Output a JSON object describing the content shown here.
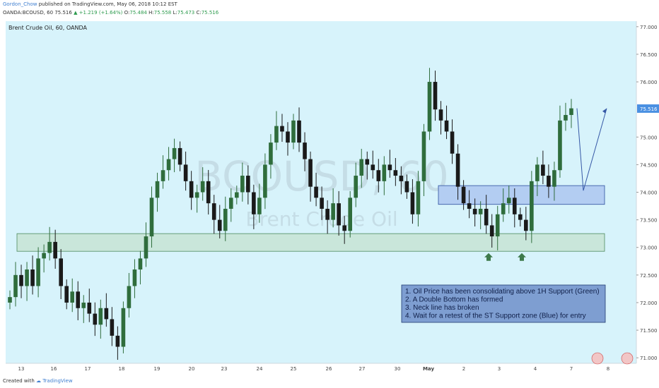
{
  "header": {
    "author": "Gordon_Chow",
    "published_text": "published on TradingView.com, May 06, 2018 10:12 EST",
    "symbol": "OANDA:BCOUSD, 60",
    "last": "75.516",
    "change": "+1.219 (+1.64%)",
    "o_label": "O:",
    "o_value": "75.484",
    "h_label": "H:",
    "h_value": "75.558",
    "l_label": "L:",
    "l_value": "75.473",
    "c_label": "C:",
    "c_value": "75.516"
  },
  "footer": {
    "created_with": "Created with",
    "brand": "TradingView"
  },
  "colors": {
    "background": "#d7f3fb",
    "up": "#2f6d3c",
    "down": "#1a1a1a",
    "support_green": "#c9e6da",
    "support_blue": "#b3cdf2",
    "note_box": "#7e9ed1",
    "arrow_green": "#3e7a4b",
    "projection": "#3658a6",
    "price_tag": "#4a90e2"
  },
  "chart_data": {
    "type": "candlestick",
    "title": "Brent Crude Oil, 60, OANDA",
    "watermark_symbol": "BCOUSD, 60",
    "watermark_name": "Brent Crude Oil",
    "ylim": [
      70.9,
      77.1
    ],
    "y_ticks": [
      "77.000",
      "76.500",
      "76.000",
      "75.516",
      "75.000",
      "74.500",
      "74.000",
      "73.500",
      "73.000",
      "72.500",
      "72.000",
      "71.500",
      "71.000"
    ],
    "x_ticks": [
      "13",
      "16",
      "17",
      "18",
      "19",
      "20",
      "23",
      "24",
      "25",
      "26",
      "27",
      "30",
      "May",
      "2",
      "3",
      "4",
      "7",
      "8"
    ],
    "current_price": 75.516,
    "closes": [
      72.1,
      72.5,
      72.3,
      72.6,
      72.3,
      72.8,
      72.9,
      73.1,
      72.8,
      72.3,
      72.0,
      72.2,
      71.9,
      72.0,
      71.8,
      71.6,
      71.9,
      71.7,
      71.4,
      71.2,
      71.9,
      72.3,
      72.6,
      72.8,
      73.2,
      73.9,
      74.2,
      74.4,
      74.6,
      74.8,
      74.5,
      74.2,
      73.9,
      74.0,
      74.2,
      73.8,
      73.5,
      73.3,
      73.7,
      73.9,
      74.0,
      74.3,
      74.0,
      73.6,
      73.9,
      74.5,
      74.9,
      75.2,
      75.1,
      74.9,
      75.3,
      74.9,
      74.6,
      74.1,
      73.9,
      73.7,
      73.5,
      73.8,
      73.4,
      73.3,
      73.9,
      74.3,
      74.6,
      74.5,
      74.4,
      74.2,
      74.5,
      74.4,
      74.3,
      74.2,
      74.0,
      73.6,
      74.2,
      75.1,
      76.0,
      75.5,
      75.3,
      75.1,
      74.7,
      74.1,
      73.8,
      73.7,
      73.6,
      73.7,
      73.4,
      73.2,
      73.6,
      73.8,
      73.9,
      73.6,
      73.5,
      73.3,
      74.2,
      74.5,
      74.3,
      74.1,
      74.4,
      75.3,
      75.4,
      75.52
    ],
    "support_green": [
      72.93,
      73.25
    ],
    "support_blue": [
      73.78,
      74.12
    ],
    "projection": [
      [
        75.52,
        0
      ],
      [
        74.03,
        1
      ],
      [
        75.52,
        2
      ]
    ],
    "notes": [
      "1. Oil Price has been consolidating above 1H Support (Green)",
      "2. A Double Bottom has formed",
      "3. Neck line has broken",
      "4. Wait for a retest of the ST Support zone (Blue) for entry"
    ]
  }
}
